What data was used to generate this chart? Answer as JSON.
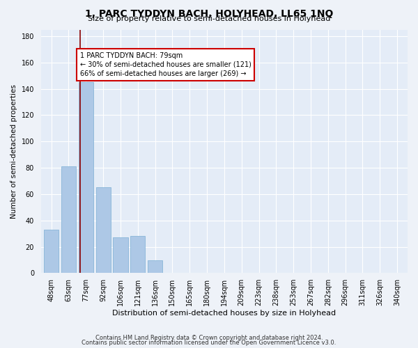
{
  "title": "1, PARC TYDDYN BACH, HOLYHEAD, LL65 1NQ",
  "subtitle": "Size of property relative to semi-detached houses in Holyhead",
  "xlabel": "Distribution of semi-detached houses by size in Holyhead",
  "ylabel": "Number of semi-detached properties",
  "footer1": "Contains HM Land Registry data © Crown copyright and database right 2024.",
  "footer2": "Contains public sector information licensed under the Open Government Licence v3.0.",
  "categories": [
    "48sqm",
    "63sqm",
    "77sqm",
    "92sqm",
    "106sqm",
    "121sqm",
    "136sqm",
    "150sqm",
    "165sqm",
    "180sqm",
    "194sqm",
    "209sqm",
    "223sqm",
    "238sqm",
    "253sqm",
    "267sqm",
    "282sqm",
    "296sqm",
    "311sqm",
    "326sqm",
    "340sqm"
  ],
  "values": [
    33,
    81,
    145,
    65,
    27,
    28,
    10,
    0,
    0,
    0,
    0,
    0,
    0,
    0,
    0,
    0,
    0,
    0,
    0,
    0,
    0
  ],
  "highlight_index": 2,
  "property_size": 79,
  "smaller_pct": 30,
  "smaller_count": 121,
  "larger_pct": 66,
  "larger_count": 269,
  "bar_color": "#adc8e6",
  "line_color": "#8b0000",
  "annotation_border_color": "#cc0000",
  "ylim": [
    0,
    185
  ],
  "yticks": [
    0,
    20,
    40,
    60,
    80,
    100,
    120,
    140,
    160,
    180
  ],
  "bg_color": "#eef2f8",
  "plot_bg_color": "#e4ecf7",
  "grid_color": "#d0d8e8",
  "title_fontsize": 10,
  "subtitle_fontsize": 8,
  "xlabel_fontsize": 8,
  "ylabel_fontsize": 7.5,
  "tick_fontsize": 7,
  "footer_fontsize": 6,
  "ann_fontsize": 7
}
